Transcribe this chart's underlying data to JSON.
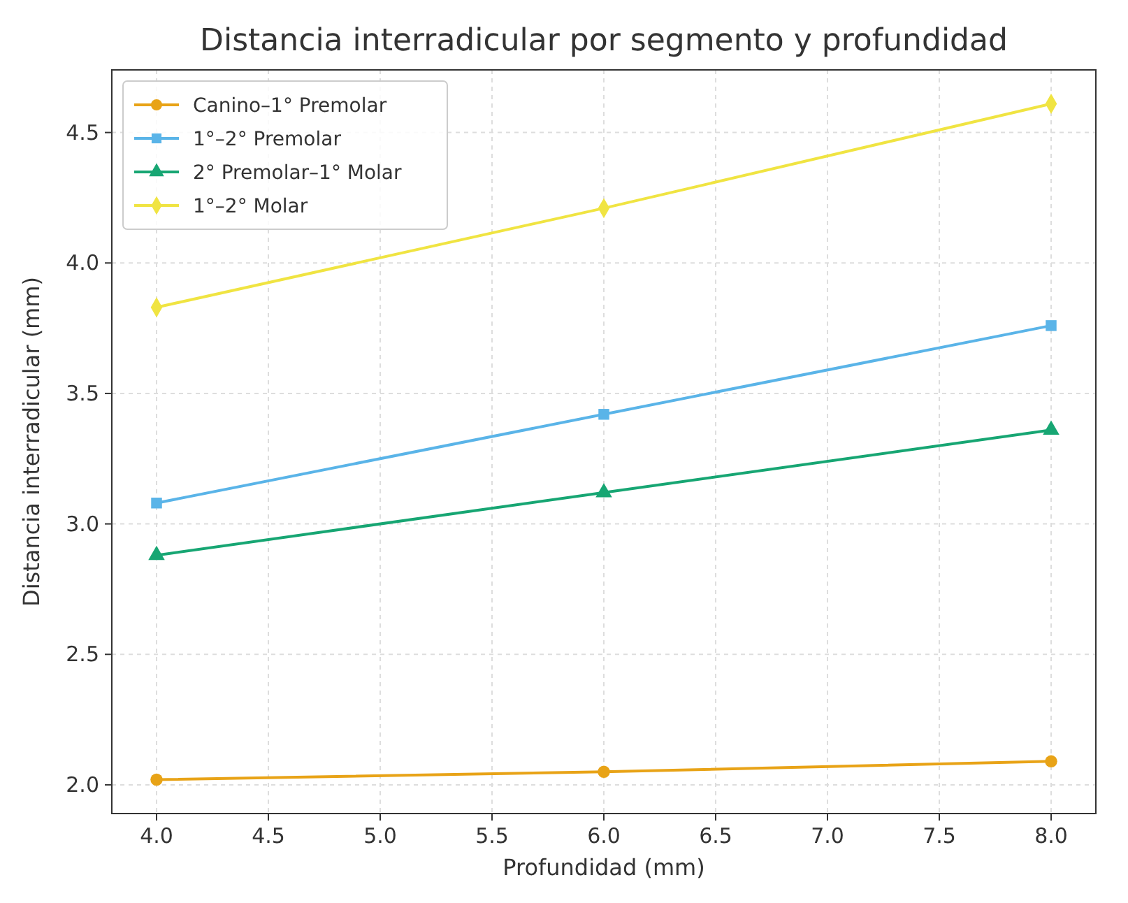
{
  "chart_data": {
    "type": "line",
    "title": "Distancia interradicular por segmento y profundidad",
    "xlabel": "Profundidad (mm)",
    "ylabel": "Distancia interradicular (mm)",
    "x": [
      4,
      6,
      8
    ],
    "series": [
      {
        "name": "Canino–1° Premolar",
        "color": "#e8a317",
        "marker": "circle",
        "values": [
          2.02,
          2.05,
          2.09
        ]
      },
      {
        "name": "1°–2° Premolar",
        "color": "#5ab4e8",
        "marker": "square",
        "values": [
          3.08,
          3.42,
          3.76
        ]
      },
      {
        "name": "2° Premolar–1° Molar",
        "color": "#17a673",
        "marker": "triangle",
        "values": [
          2.88,
          3.12,
          3.36
        ]
      },
      {
        "name": "1°–2° Molar",
        "color": "#f0e442",
        "marker": "diamond",
        "values": [
          3.83,
          4.21,
          4.61
        ]
      }
    ],
    "xlim": [
      3.8,
      8.2
    ],
    "xticks": [
      {
        "value": 4,
        "label": "4.0"
      },
      {
        "value": 4.5,
        "label": "4.5"
      },
      {
        "value": 5,
        "label": "5.0"
      },
      {
        "value": 5.5,
        "label": "5.5"
      },
      {
        "value": 6,
        "label": "6.0"
      },
      {
        "value": 6.5,
        "label": "6.5"
      },
      {
        "value": 7,
        "label": "7.0"
      },
      {
        "value": 7.5,
        "label": "7.5"
      },
      {
        "value": 8,
        "label": "8.0"
      }
    ],
    "ylim": [
      1.89,
      4.74
    ],
    "yticks": [
      {
        "value": 2,
        "label": "2.0"
      },
      2.5,
      {
        "value": 3,
        "label": "3.0"
      },
      3.5,
      {
        "value": 4,
        "label": "4.0"
      },
      4.5
    ],
    "grid": true,
    "legend": "top left",
    "line_style": "solid"
  }
}
